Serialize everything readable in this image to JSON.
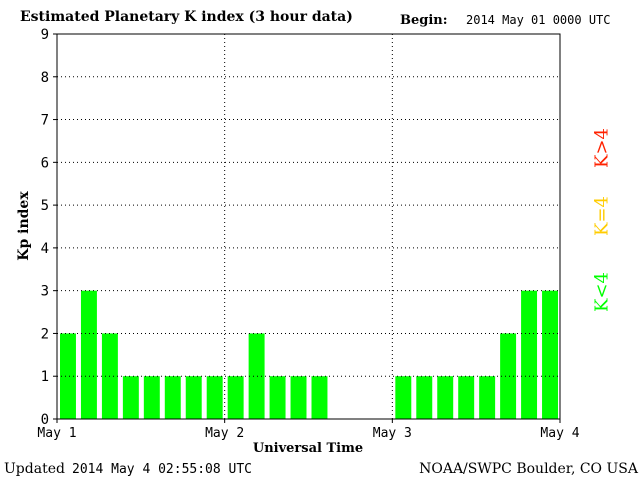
{
  "header": {
    "title": "Estimated Planetary K index (3 hour data)",
    "begin_label": "Begin:",
    "begin_value": "2014 May 01 0000 UTC"
  },
  "footer": {
    "updated_label": "Updated",
    "updated_value": "2014 May  4 02:55:08 UTC",
    "credit": "NOAA/SWPC Boulder, CO USA"
  },
  "legend": {
    "high": "K>4",
    "mid": "K=4",
    "low": "K<4"
  },
  "colors": {
    "low": "#00ff00",
    "mid": "#ffcc00",
    "high": "#ff2200",
    "grid": "#000000"
  },
  "chart_data": {
    "type": "bar",
    "title": "Estimated Planetary K index (3 hour data)",
    "xlabel": "Universal Time",
    "ylabel": "Kp index",
    "ylim": [
      0,
      9
    ],
    "yticks": [
      0,
      1,
      2,
      3,
      4,
      5,
      6,
      7,
      8,
      9
    ],
    "x_tick_labels": [
      "May 1",
      "May 2",
      "May 3",
      "May 4"
    ],
    "intervals_per_day": 8,
    "values": [
      2,
      3,
      2,
      1,
      1,
      1,
      1,
      1,
      1,
      2,
      1,
      1,
      1,
      null,
      null,
      null,
      1,
      1,
      1,
      1,
      1,
      2,
      3,
      3
    ],
    "grid": true
  }
}
